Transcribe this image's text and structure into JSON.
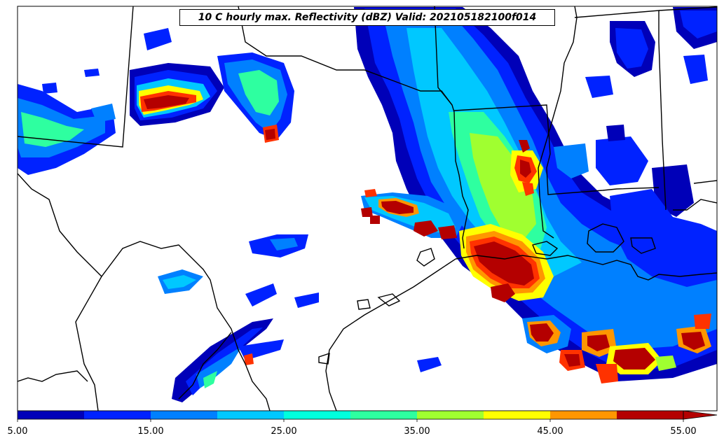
{
  "title": "10 C hourly max. Reflectivity (dBZ) Valid: 202105182100f014",
  "colorbar": {
    "colors": [
      "#0000b8",
      "#0022ff",
      "#0080ff",
      "#00c8ff",
      "#00ffdd",
      "#2effa0",
      "#a0ff30",
      "#ffff00",
      "#ff9600",
      "#ff3200",
      "#b40000"
    ],
    "levels": [
      5,
      10,
      15,
      20,
      25,
      30,
      35,
      40,
      45,
      50,
      55
    ],
    "extend": "max",
    "tick_labels": [
      "5.00",
      "15.00",
      "25.00",
      "35.00",
      "45.00",
      "55.00"
    ]
  }
}
